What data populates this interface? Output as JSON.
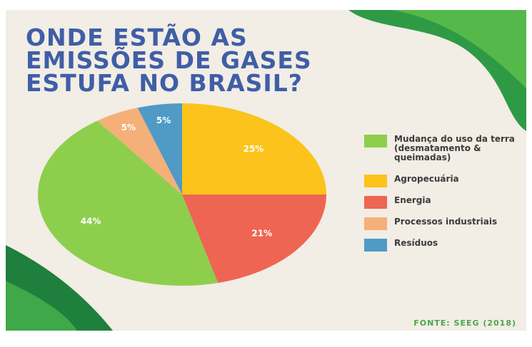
{
  "chart_data": {
    "type": "pie",
    "title_lines": [
      "ONDE ESTÃO AS",
      "EMISSÕES DE GASES",
      "ESTUFA NO BRASIL?"
    ],
    "categories": [
      "Mudança do uso da terra (desmatamento & queimadas)",
      "Agropecuária",
      "Energia",
      "Processos industriais",
      "Resíduos"
    ],
    "values": [
      44,
      25,
      21,
      5,
      5
    ],
    "value_labels": [
      "44%",
      "25%",
      "21%",
      "5%",
      "5%"
    ],
    "colors": [
      "#8dcf4c",
      "#fbc31b",
      "#ef6553",
      "#f5b07a",
      "#4f9bc6"
    ],
    "source": "FONTE: SEEG (2018)"
  }
}
